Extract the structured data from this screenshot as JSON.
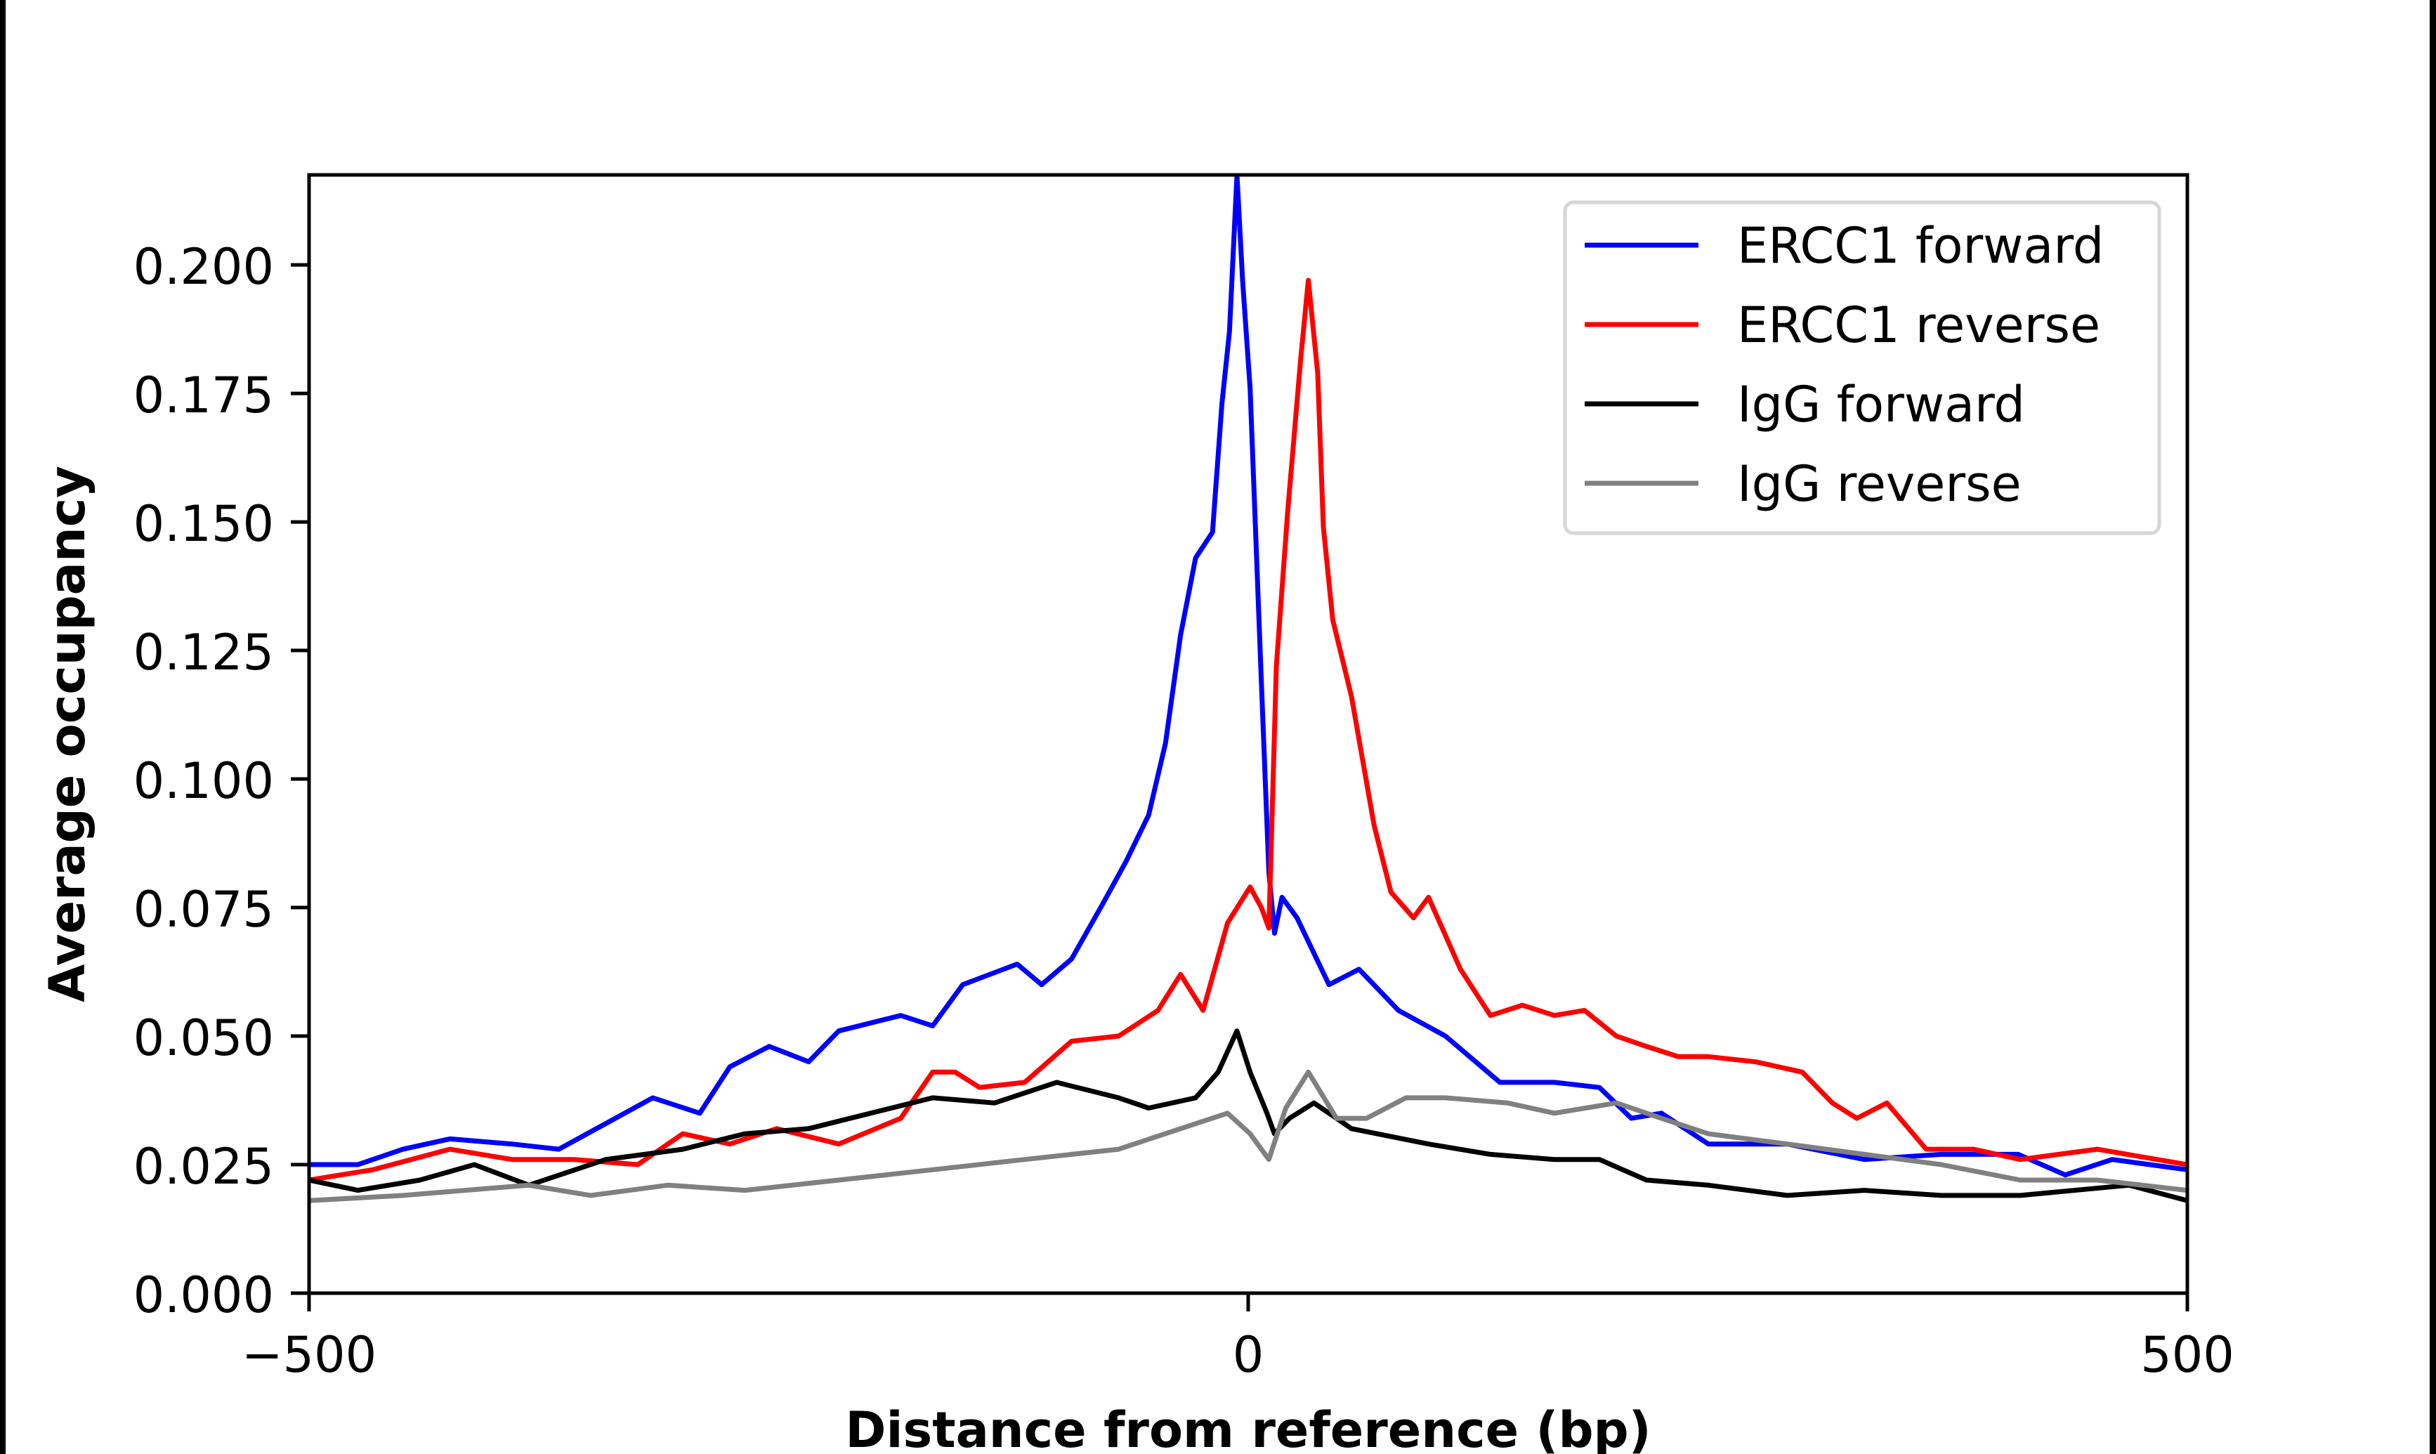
{
  "chart_data": {
    "type": "line",
    "title": "",
    "xlabel": "Distance from reference (bp)",
    "ylabel": "Average occupancy",
    "xlim": [
      -500,
      500
    ],
    "ylim": [
      0,
      0.2175
    ],
    "xticks": [
      -500,
      0,
      500
    ],
    "xtick_labels": [
      "−500",
      "0",
      "500"
    ],
    "yticks": [
      0,
      0.025,
      0.05,
      0.075,
      0.1,
      0.125,
      0.15,
      0.175,
      0.2
    ],
    "ytick_labels": [
      "0.000",
      "0.025",
      "0.050",
      "0.075",
      "0.100",
      "0.125",
      "0.150",
      "0.175",
      "0.200"
    ],
    "grid": false,
    "legend_position": "top-right",
    "series": [
      {
        "name": "ERCC1 forward",
        "color": "#0000ff",
        "x": [
          -500,
          -474,
          -450,
          -425,
          -392,
          -367,
          -342,
          -317,
          -292,
          -276,
          -255,
          -234,
          -218,
          -185,
          -168,
          -152,
          -123,
          -110,
          -94,
          -77,
          -65,
          -53,
          -44,
          -36,
          -28,
          -19,
          -14,
          -10,
          -6,
          -3,
          1,
          7,
          11,
          14,
          18,
          26,
          43,
          59,
          80,
          105,
          134,
          163,
          187,
          204,
          220,
          245,
          287,
          328,
          369,
          410,
          435,
          460,
          500
        ],
        "y": [
          0.025,
          0.025,
          0.028,
          0.03,
          0.029,
          0.028,
          0.033,
          0.038,
          0.035,
          0.044,
          0.048,
          0.045,
          0.051,
          0.054,
          0.052,
          0.06,
          0.064,
          0.06,
          0.065,
          0.076,
          0.084,
          0.093,
          0.107,
          0.128,
          0.143,
          0.148,
          0.173,
          0.187,
          0.2175,
          0.197,
          0.176,
          0.119,
          0.082,
          0.07,
          0.077,
          0.073,
          0.06,
          0.063,
          0.055,
          0.05,
          0.041,
          0.041,
          0.04,
          0.034,
          0.035,
          0.029,
          0.029,
          0.026,
          0.027,
          0.027,
          0.023,
          0.026,
          0.024
        ]
      },
      {
        "name": "ERCC1 reverse",
        "color": "#ff0000",
        "x": [
          -500,
          -466,
          -425,
          -392,
          -359,
          -325,
          -301,
          -276,
          -251,
          -218,
          -185,
          -168,
          -156,
          -143,
          -119,
          -94,
          -69,
          -48,
          -36,
          -24,
          -11,
          1,
          7,
          11,
          15,
          21,
          28,
          32,
          37,
          40,
          45,
          55,
          67,
          76,
          88,
          96,
          113,
          129,
          146,
          163,
          179,
          196,
          212,
          229,
          245,
          270,
          295,
          311,
          324,
          340,
          361,
          386,
          411,
          452,
          500
        ],
        "y": [
          0.022,
          0.024,
          0.028,
          0.026,
          0.026,
          0.025,
          0.031,
          0.029,
          0.032,
          0.029,
          0.034,
          0.043,
          0.043,
          0.04,
          0.041,
          0.049,
          0.05,
          0.055,
          0.062,
          0.055,
          0.072,
          0.079,
          0.075,
          0.071,
          0.122,
          0.152,
          0.182,
          0.197,
          0.179,
          0.149,
          0.131,
          0.116,
          0.091,
          0.078,
          0.073,
          0.077,
          0.063,
          0.054,
          0.056,
          0.054,
          0.055,
          0.05,
          0.048,
          0.046,
          0.046,
          0.045,
          0.043,
          0.037,
          0.034,
          0.037,
          0.028,
          0.028,
          0.026,
          0.028,
          0.025
        ]
      },
      {
        "name": "IgG forward",
        "color": "#000000",
        "x": [
          -500,
          -474,
          -441,
          -412,
          -383,
          -342,
          -301,
          -268,
          -234,
          -201,
          -168,
          -135,
          -102,
          -69,
          -53,
          -28,
          -16,
          -6,
          1,
          10,
          14,
          22,
          35,
          55,
          96,
          129,
          163,
          187,
          212,
          245,
          287,
          328,
          369,
          411,
          469,
          500
        ],
        "y": [
          0.022,
          0.02,
          0.022,
          0.025,
          0.021,
          0.026,
          0.028,
          0.031,
          0.032,
          0.035,
          0.038,
          0.037,
          0.041,
          0.038,
          0.036,
          0.038,
          0.043,
          0.051,
          0.043,
          0.035,
          0.031,
          0.034,
          0.037,
          0.032,
          0.029,
          0.027,
          0.026,
          0.026,
          0.022,
          0.021,
          0.019,
          0.02,
          0.019,
          0.019,
          0.021,
          0.018
        ]
      },
      {
        "name": "IgG reverse",
        "color": "#808080",
        "x": [
          -500,
          -450,
          -417,
          -383,
          -350,
          -309,
          -268,
          -218,
          -168,
          -119,
          -69,
          -36,
          -11,
          1,
          11,
          20,
          32,
          47,
          63,
          84,
          105,
          138,
          163,
          196,
          220,
          245,
          287,
          328,
          369,
          411,
          452,
          500
        ],
        "y": [
          0.018,
          0.019,
          0.02,
          0.021,
          0.019,
          0.021,
          0.02,
          0.022,
          0.024,
          0.026,
          0.028,
          0.032,
          0.035,
          0.031,
          0.026,
          0.036,
          0.043,
          0.034,
          0.034,
          0.038,
          0.038,
          0.037,
          0.035,
          0.037,
          0.034,
          0.031,
          0.029,
          0.027,
          0.025,
          0.022,
          0.022,
          0.02
        ]
      }
    ]
  }
}
